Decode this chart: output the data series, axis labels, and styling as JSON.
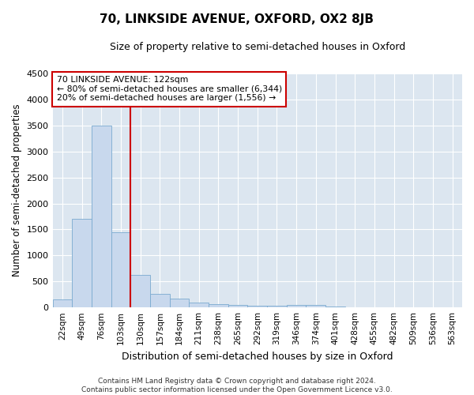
{
  "title": "70, LINKSIDE AVENUE, OXFORD, OX2 8JB",
  "subtitle": "Size of property relative to semi-detached houses in Oxford",
  "xlabel": "Distribution of semi-detached houses by size in Oxford",
  "ylabel": "Number of semi-detached properties",
  "bar_color": "#c8d8ed",
  "bar_edge_color": "#7aaad0",
  "categories": [
    "22sqm",
    "49sqm",
    "76sqm",
    "103sqm",
    "130sqm",
    "157sqm",
    "184sqm",
    "211sqm",
    "238sqm",
    "265sqm",
    "292sqm",
    "319sqm",
    "346sqm",
    "374sqm",
    "401sqm",
    "428sqm",
    "455sqm",
    "482sqm",
    "509sqm",
    "536sqm",
    "563sqm"
  ],
  "values": [
    150,
    1700,
    3500,
    1450,
    620,
    260,
    170,
    100,
    70,
    50,
    40,
    30,
    50,
    50,
    15,
    10,
    5,
    3,
    2,
    1,
    1
  ],
  "ylim": [
    0,
    4500
  ],
  "yticks": [
    0,
    500,
    1000,
    1500,
    2000,
    2500,
    3000,
    3500,
    4000,
    4500
  ],
  "property_line_label": "70 LINKSIDE AVENUE: 122sqm",
  "annotation_line1": "← 80% of semi-detached houses are smaller (6,344)",
  "annotation_line2": "20% of semi-detached houses are larger (1,556) →",
  "footer1": "Contains HM Land Registry data © Crown copyright and database right 2024.",
  "footer2": "Contains public sector information licensed under the Open Government Licence v3.0.",
  "fig_bg_color": "#ffffff",
  "plot_bg_color": "#dce6f0",
  "grid_color": "#ffffff",
  "red_line_color": "#cc0000",
  "annotation_box_edge": "#cc0000",
  "annotation_box_bg": "#ffffff",
  "red_line_index": 4
}
